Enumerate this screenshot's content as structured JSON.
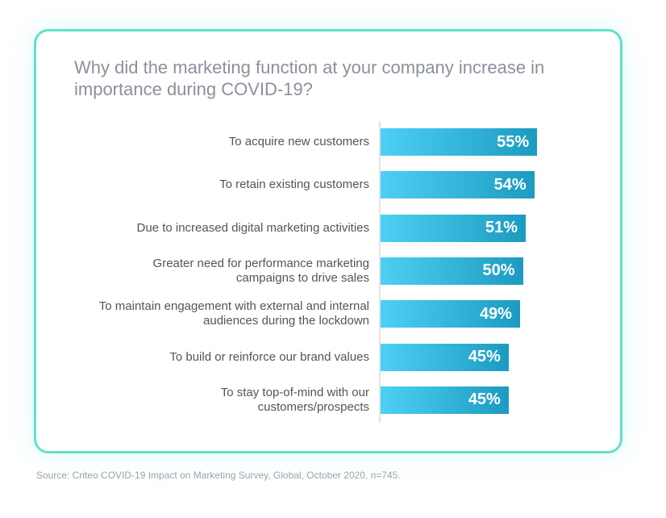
{
  "chart_data": {
    "type": "bar",
    "orientation": "horizontal",
    "title": "Why did the marketing function at your company increase in importance during COVID-19?",
    "categories": [
      "To acquire new customers",
      "To retain existing customers",
      "Due to increased digital marketing activities",
      "Greater need for performance marketing campaigns to drive sales",
      "To maintain engagement with external and internal audiences during the lockdown",
      "To build or reinforce our brand values",
      "To stay top-of-mind with our customers/prospects"
    ],
    "values": [
      55,
      54,
      51,
      50,
      49,
      45,
      45
    ],
    "data_labels": [
      "55%",
      "54%",
      "51%",
      "50%",
      "49%",
      "45%",
      "45%"
    ],
    "unit": "%",
    "xlim": [
      0,
      100
    ],
    "grid": false,
    "bar_color_start": "#4dd0f4",
    "bar_color_end": "#1c9bc0"
  },
  "source": "Source: Criteo COVID-19 Impact on Marketing Survey, Global, October 2020, n=745.",
  "card_border_color": "#5fe3c2"
}
